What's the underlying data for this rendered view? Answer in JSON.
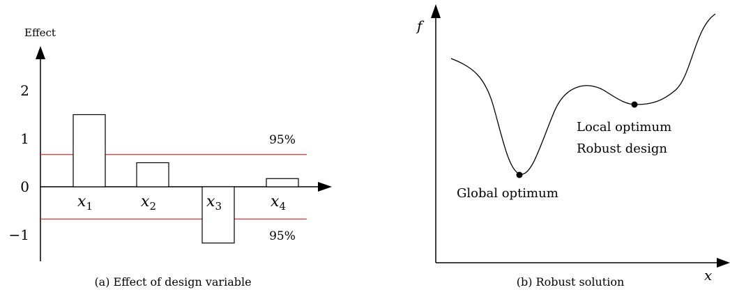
{
  "chart_data": [
    {
      "type": "bar",
      "title": "",
      "xlabel": "",
      "ylabel": "Effect",
      "ylim": [
        -1.45,
        2.6
      ],
      "yticks": [
        {
          "value": 2,
          "label": "2"
        },
        {
          "value": 1,
          "label": "1"
        },
        {
          "value": 0,
          "label": "0"
        },
        {
          "value": -1,
          "label": "−1"
        }
      ],
      "categories": [
        "x1",
        "x2",
        "x3",
        "x4"
      ],
      "category_labels": [
        {
          "base": "x",
          "sub": "1"
        },
        {
          "base": "x",
          "sub": "2"
        },
        {
          "base": "x",
          "sub": "3"
        },
        {
          "base": "x",
          "sub": "4"
        }
      ],
      "values": [
        1.5,
        0.5,
        -1.17,
        0.17
      ],
      "threshold_lines": [
        {
          "value": 0.67,
          "label": "95%",
          "color": "#e03030"
        },
        {
          "value": -0.67,
          "label": "95%",
          "color": "#e03030"
        }
      ],
      "grid": false,
      "caption": "(a) Effect of design variable"
    },
    {
      "type": "line",
      "title": "",
      "xlabel": "x",
      "ylabel": "f",
      "caption": "(b) Robust solution",
      "annotations": [
        {
          "id": "global",
          "label": "Global optimum"
        },
        {
          "id": "local",
          "lines": [
            "Local optimum",
            "Robust design"
          ]
        }
      ]
    }
  ]
}
